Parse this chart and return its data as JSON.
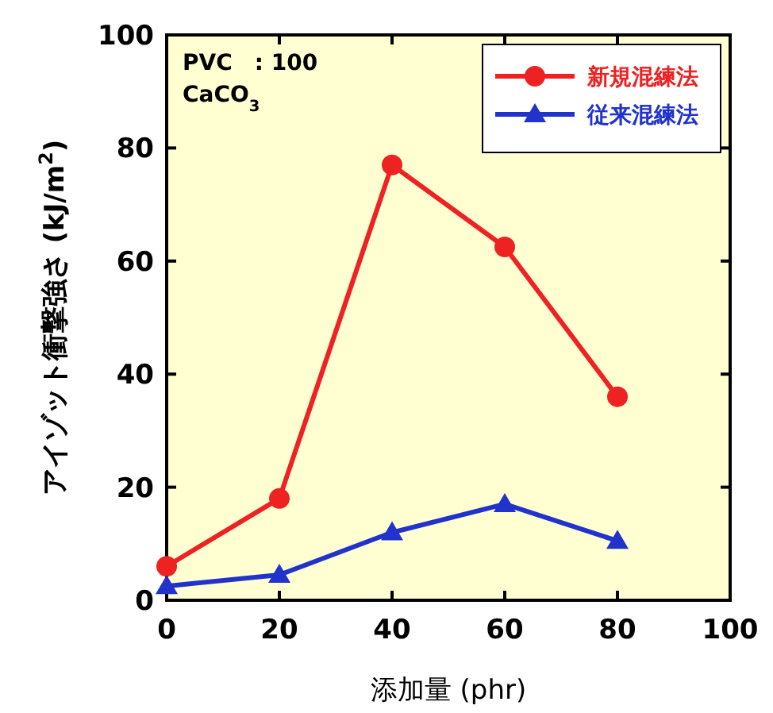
{
  "chart_data": {
    "type": "line",
    "xlabel": "添加量 (phr)",
    "ylabel": "アイゾット衝撃強さ (kJ/m$^{2}$)",
    "x": [
      0,
      20,
      40,
      60,
      80
    ],
    "series": [
      {
        "name": "新規混練法",
        "color": "#ee2222",
        "marker": "circle",
        "values": [
          6,
          18,
          77,
          62.5,
          36
        ]
      },
      {
        "name": "従来混練法",
        "color": "#2233cc",
        "marker": "triangle",
        "values": [
          2.5,
          4.5,
          12,
          17,
          10.5
        ]
      }
    ],
    "xlim": [
      0,
      100
    ],
    "ylim": [
      0,
      100
    ],
    "xticks": [
      0,
      20,
      40,
      60,
      80,
      100
    ],
    "yticks": [
      0,
      20,
      40,
      60,
      80,
      100
    ],
    "legend": "top right",
    "grid": false,
    "annotations": [
      "PVC　: 100",
      "CaCO$_{3}$"
    ]
  }
}
